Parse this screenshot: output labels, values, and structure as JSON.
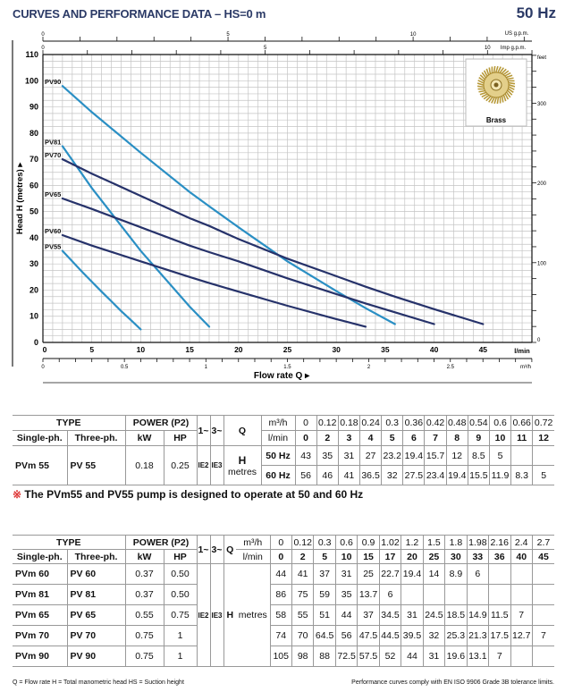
{
  "header": {
    "title": "CURVES AND PERFORMANCE DATA  –  HS=0 m",
    "frequency": "50 Hz"
  },
  "chart_data": {
    "type": "line",
    "xlabel": "Flow rate Q ▸",
    "ylabel": "Head H (metres) ▸",
    "x_unit": "l/min",
    "y_unit": "m",
    "xlim": [
      0,
      50
    ],
    "ylim": [
      0,
      110
    ],
    "x_ticks": [
      0,
      5,
      10,
      15,
      20,
      25,
      30,
      35,
      40,
      45
    ],
    "y_ticks": [
      0,
      10,
      20,
      30,
      40,
      50,
      60,
      70,
      80,
      90,
      100,
      110
    ],
    "grid": true,
    "secondary_axes": {
      "us_gpm": {
        "label": "US g.p.m.",
        "ticks": [
          0,
          5,
          10
        ]
      },
      "imp_gpm": {
        "label": "Imp g.p.m.",
        "ticks": [
          0,
          5,
          10
        ]
      },
      "feet": {
        "label": "feet",
        "ticks": [
          0,
          100,
          200,
          300
        ]
      },
      "m3h": {
        "label": "m³/h",
        "ticks": [
          "0",
          "0.5",
          "1",
          "1.5",
          "2",
          "2.5"
        ]
      }
    },
    "inset_label": "Brass",
    "series": [
      {
        "name": "PV90",
        "color": "#2a8fc4",
        "x": [
          2,
          5,
          10,
          15,
          17,
          20,
          25,
          30,
          33,
          36
        ],
        "y": [
          98,
          88,
          72.5,
          57.5,
          52,
          44,
          31,
          19.6,
          13.1,
          7
        ]
      },
      {
        "name": "PV81",
        "color": "#2a8fc4",
        "x": [
          2,
          5,
          10,
          15,
          17
        ],
        "y": [
          75,
          59,
          35,
          13.7,
          6
        ]
      },
      {
        "name": "PV70",
        "color": "#26326a",
        "x": [
          2,
          5,
          10,
          15,
          17,
          20,
          25,
          30,
          33,
          36,
          40,
          45
        ],
        "y": [
          70,
          64.5,
          56,
          47.5,
          44.5,
          39.5,
          32,
          25.3,
          21.3,
          17.5,
          12.7,
          7
        ]
      },
      {
        "name": "PV65",
        "color": "#26326a",
        "x": [
          2,
          5,
          10,
          15,
          17,
          20,
          25,
          30,
          33,
          36,
          40
        ],
        "y": [
          55,
          51,
          44,
          37,
          34.5,
          31,
          24.5,
          18.5,
          14.9,
          11.5,
          7
        ]
      },
      {
        "name": "PV60",
        "color": "#26326a",
        "x": [
          2,
          5,
          10,
          15,
          17,
          20,
          25,
          30,
          33
        ],
        "y": [
          41,
          37,
          31,
          25,
          22.7,
          19.4,
          14,
          8.9,
          6
        ]
      },
      {
        "name": "PV55",
        "color": "#2a8fc4",
        "x": [
          2,
          3,
          4,
          5,
          6,
          7,
          8,
          9,
          10
        ],
        "y": [
          35,
          31,
          27,
          23.2,
          19.4,
          15.7,
          12,
          8.5,
          5
        ]
      }
    ]
  },
  "table1": {
    "h_type": "TYPE",
    "h_power": "POWER (P2)",
    "h_single": "Single-ph.",
    "h_three": "Three-ph.",
    "h_kw": "kW",
    "h_hp": "HP",
    "h_1": "1~",
    "h_3": "3~",
    "h_q": "Q",
    "h_m3h": "m³/h",
    "h_lmin": "l/min",
    "h_h": "H",
    "h_metres": "metres",
    "m3h": [
      "0",
      "0.12",
      "0.18",
      "0.24",
      "0.3",
      "0.36",
      "0.42",
      "0.48",
      "0.54",
      "0.6",
      "0.66",
      "0.72"
    ],
    "lmin": [
      "0",
      "2",
      "3",
      "4",
      "5",
      "6",
      "7",
      "8",
      "9",
      "10",
      "11",
      "12"
    ],
    "row": {
      "single": "PVm 55",
      "three": "PV 55",
      "kw": "0.18",
      "hp": "0.25",
      "ie1": "IE2",
      "ie3": "IE3",
      "hz50_label": "50 Hz",
      "hz50": [
        "43",
        "35",
        "31",
        "27",
        "23.2",
        "19.4",
        "15.7",
        "12",
        "8.5",
        "5",
        "",
        ""
      ],
      "hz60_label": "60 Hz",
      "hz60": [
        "56",
        "46",
        "41",
        "36.5",
        "32",
        "27.5",
        "23.4",
        "19.4",
        "15.5",
        "11.9",
        "8.3",
        "5"
      ]
    }
  },
  "note": {
    "mark": "※",
    "text": " The PVm55 and PV55 pump is designed to operate at 50 and 60 Hz"
  },
  "table2": {
    "h_type": "TYPE",
    "h_power": "POWER (P2)",
    "h_single": "Single-ph.",
    "h_three": "Three-ph.",
    "h_kw": "kW",
    "h_hp": "HP",
    "h_1": "1~",
    "h_3": "3~",
    "h_q": "Q",
    "h_m3h": "m³/h",
    "h_lmin": "l/min",
    "h_h": "H",
    "h_metres": "metres",
    "ie1": "IE2",
    "ie3": "IE3",
    "m3h": [
      "0",
      "0.12",
      "0.3",
      "0.6",
      "0.9",
      "1.02",
      "1.2",
      "1.5",
      "1.8",
      "1.98",
      "2.16",
      "2.4",
      "2.7"
    ],
    "lmin": [
      "0",
      "2",
      "5",
      "10",
      "15",
      "17",
      "20",
      "25",
      "30",
      "33",
      "36",
      "40",
      "45"
    ],
    "rows": [
      {
        "single": "PVm 60",
        "three": "PV 60",
        "kw": "0.37",
        "hp": "0.50",
        "h": [
          "44",
          "41",
          "37",
          "31",
          "25",
          "22.7",
          "19.4",
          "14",
          "8.9",
          "6",
          "",
          "",
          ""
        ]
      },
      {
        "single": "PVm 81",
        "three": "PV 81",
        "kw": "0.37",
        "hp": "0.50",
        "h": [
          "86",
          "75",
          "59",
          "35",
          "13.7",
          "6",
          "",
          "",
          "",
          "",
          "",
          "",
          ""
        ]
      },
      {
        "single": "PVm 65",
        "three": "PV 65",
        "kw": "0.55",
        "hp": "0.75",
        "h": [
          "58",
          "55",
          "51",
          "44",
          "37",
          "34.5",
          "31",
          "24.5",
          "18.5",
          "14.9",
          "11.5",
          "7",
          ""
        ]
      },
      {
        "single": "PVm 70",
        "three": "PV 70",
        "kw": "0.75",
        "hp": "1",
        "h": [
          "74",
          "70",
          "64.5",
          "56",
          "47.5",
          "44.5",
          "39.5",
          "32",
          "25.3",
          "21.3",
          "17.5",
          "12.7",
          "7"
        ]
      },
      {
        "single": "PVm 90",
        "three": "PV 90",
        "kw": "0.75",
        "hp": "1",
        "h": [
          "105",
          "98",
          "88",
          "72.5",
          "57.5",
          "52",
          "44",
          "31",
          "19.6",
          "13.1",
          "7",
          "",
          ""
        ]
      }
    ]
  },
  "footer": {
    "left": "Q = Flow rate   H = Total manometric head   HS = Suction height",
    "right": "Performance curves comply with EN ISO 9906 Grade 3B tolerance limits."
  }
}
